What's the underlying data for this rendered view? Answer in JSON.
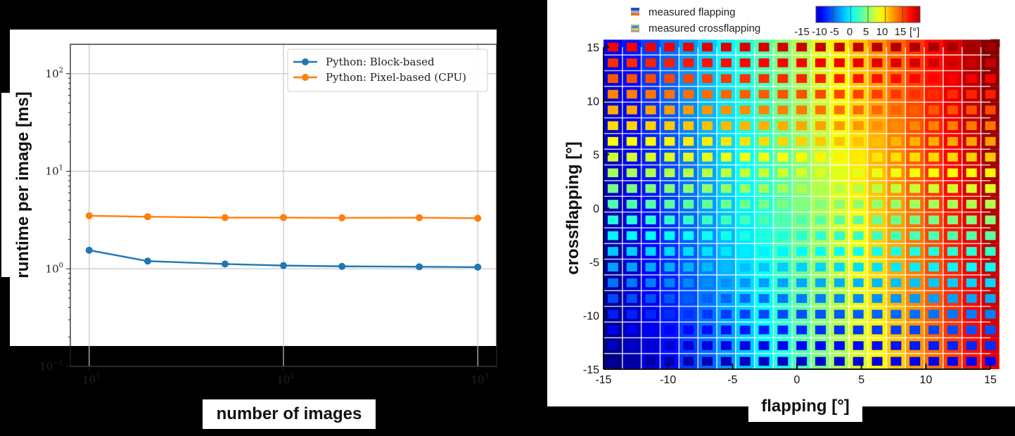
{
  "chart_data": [
    {
      "type": "line",
      "title": "",
      "xlabel": "number of images",
      "ylabel": "runtime per image [ms]",
      "xscale": "log",
      "yscale": "log",
      "xlim": [
        8,
        1250
      ],
      "ylim": [
        0.1,
        200
      ],
      "x_ticks": [
        10,
        100,
        1000
      ],
      "x_tick_labels": [
        {
          "base": "10",
          "exp": "1"
        },
        {
          "base": "10",
          "exp": "2"
        },
        {
          "base": "10",
          "exp": "3"
        }
      ],
      "y_ticks": [
        0.1,
        1,
        10,
        100
      ],
      "y_tick_labels": [
        {
          "base": "10",
          "exp": "−1"
        },
        {
          "base": "10",
          "exp": "0"
        },
        {
          "base": "10",
          "exp": "1"
        },
        {
          "base": "10",
          "exp": "2"
        }
      ],
      "grid": true,
      "legend_position": "top-right",
      "x": [
        10,
        20,
        50,
        100,
        200,
        500,
        1000
      ],
      "series": [
        {
          "name": "Python: Block-based",
          "color": "#1f77b4",
          "values": [
            1.55,
            1.2,
            1.12,
            1.08,
            1.06,
            1.05,
            1.04
          ]
        },
        {
          "name": "Python: Pixel-based (CPU)",
          "color": "#ff7f0e",
          "values": [
            3.5,
            3.42,
            3.35,
            3.35,
            3.33,
            3.34,
            3.3
          ]
        }
      ]
    },
    {
      "type": "heatmap",
      "title": "",
      "xlabel": "flapping [°]",
      "ylabel": "crossflapping [°]",
      "xlim": [
        -15,
        15
      ],
      "ylim": [
        -15,
        15
      ],
      "x_ticks": [
        -15,
        -10,
        -5,
        0,
        5,
        10,
        15
      ],
      "y_ticks": [
        -15,
        -10,
        -5,
        0,
        5,
        10,
        15
      ],
      "grid_step": 1.5,
      "legend": [
        {
          "label": "measured flapping",
          "icon": "flapping-swatch-icon"
        },
        {
          "label": "measured crossflapping",
          "icon": "crossflapping-swatch-icon"
        }
      ],
      "colorbar": {
        "range": [
          -15,
          15
        ],
        "tick_labels": [
          "-15",
          "-10",
          "-5",
          "0",
          "5",
          "10",
          "15"
        ],
        "unit": "[°]",
        "colormap": "jet"
      },
      "description": "Outer frame color encodes measured flapping (≈ x value), inner square encodes measured crossflapping (≈ y value)"
    }
  ]
}
